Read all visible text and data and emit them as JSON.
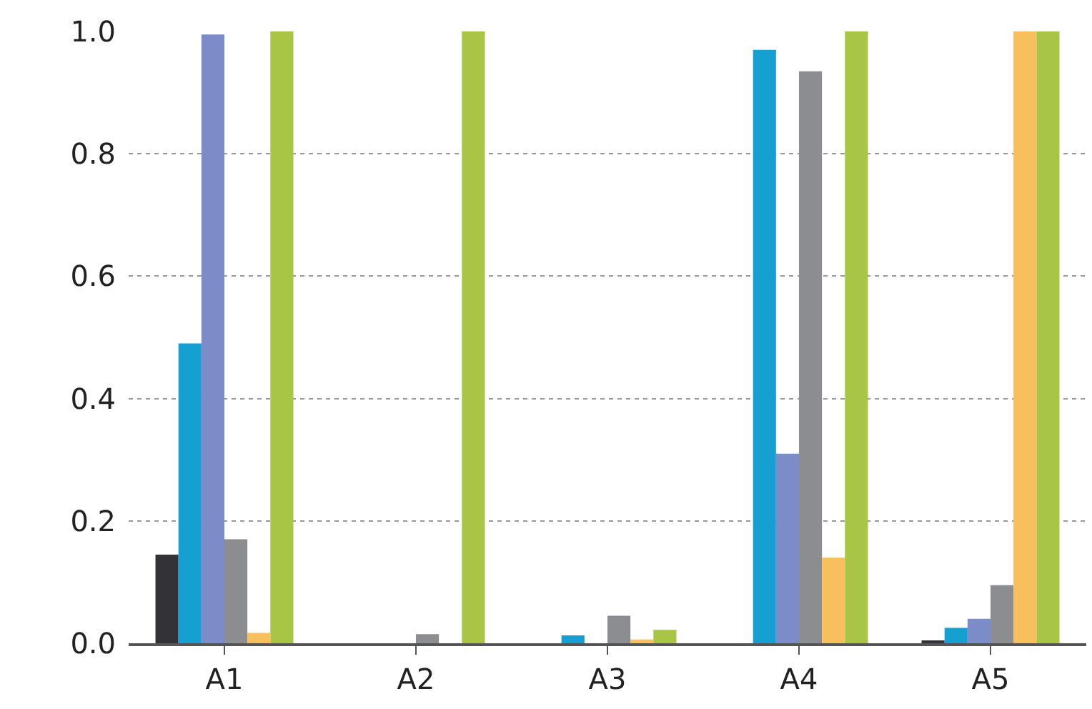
{
  "chart_data": {
    "type": "bar",
    "categories": [
      "A1",
      "A2",
      "A3",
      "A4",
      "A5"
    ],
    "series": [
      {
        "color": "#333237",
        "values": [
          0.145,
          0,
          0,
          0,
          0.003
        ]
      },
      {
        "color": "#16a0d2",
        "values": [
          0.49,
          0,
          0.013,
          0.97,
          0.025
        ]
      },
      {
        "color": "#7b8cc8",
        "values": [
          0.995,
          0,
          0,
          0.31,
          0.04
        ]
      },
      {
        "color": "#8c8d91",
        "values": [
          0.17,
          0.015,
          0.045,
          0.935,
          0.095
        ]
      },
      {
        "color": "#f8c05c",
        "values": [
          0.017,
          0,
          0.006,
          0.14,
          1.0
        ]
      },
      {
        "color": "#a8c545",
        "values": [
          1.0,
          1.0,
          0.022,
          1.0,
          1.0
        ]
      }
    ],
    "ylim": [
      0,
      1
    ],
    "yticks": [
      {
        "value": 0,
        "label": "0.0"
      },
      0.2,
      0.4,
      0.6,
      0.8,
      {
        "value": 1,
        "label": "1.0"
      }
    ],
    "grid": "y"
  }
}
